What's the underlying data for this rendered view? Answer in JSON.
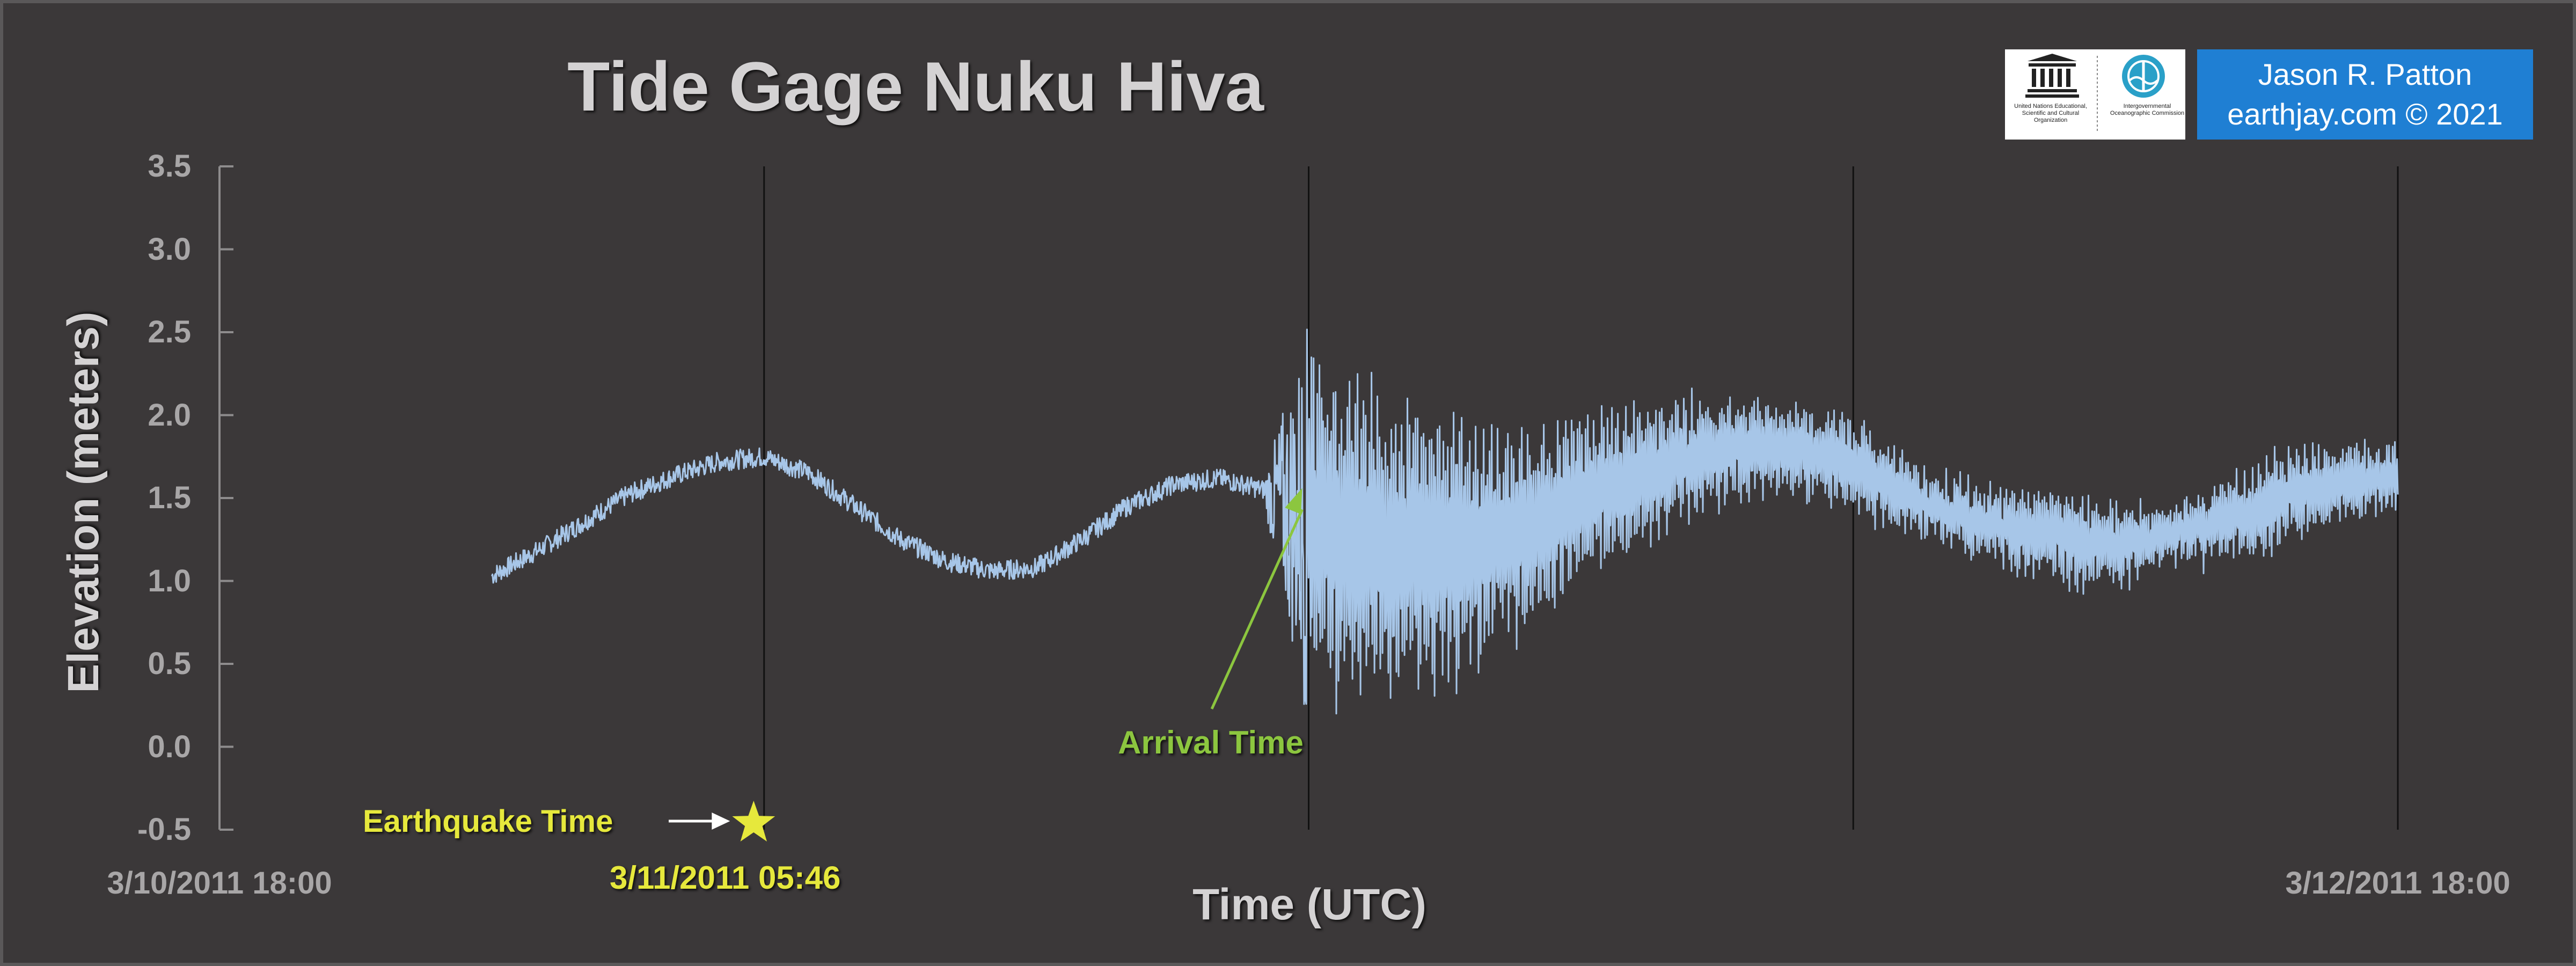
{
  "chart_data": {
    "type": "line",
    "title": "Tide Gage Nuku Hiva",
    "xlabel": "Time (UTC)",
    "ylabel": "Elevation (meters)",
    "ylim": [
      -0.5,
      3.5
    ],
    "yticks": [
      "3.5",
      "3.0",
      "2.5",
      "2.0",
      "1.5",
      "1.0",
      "0.5",
      "0.0",
      "-0.5"
    ],
    "xticks": [
      {
        "label": "3/10/2011 18:00",
        "hours": 0
      },
      {
        "label": "3/12/2011 18:00",
        "hours": 48
      }
    ],
    "xlim_hours": [
      0,
      48
    ],
    "gridlines_hours": [
      12,
      24,
      36,
      48
    ],
    "grid": "vertical",
    "series": [
      {
        "color": "#a7c6e8",
        "x_hours": [
          6,
          7,
          8,
          9,
          10,
          11,
          12,
          13,
          14,
          15,
          16,
          17,
          18,
          19,
          20,
          21,
          22,
          23,
          24,
          25,
          26,
          27,
          28,
          29,
          30,
          31,
          32,
          33,
          34,
          35,
          36,
          37,
          38,
          39,
          40,
          41,
          42,
          43,
          44,
          45,
          46,
          47,
          48
        ],
        "baseline_m": [
          1.03,
          1.18,
          1.35,
          1.52,
          1.63,
          1.72,
          1.75,
          1.65,
          1.45,
          1.25,
          1.12,
          1.06,
          1.08,
          1.25,
          1.45,
          1.58,
          1.62,
          1.55,
          1.35,
          1.25,
          1.2,
          1.18,
          1.25,
          1.35,
          1.48,
          1.6,
          1.72,
          1.78,
          1.82,
          1.78,
          1.7,
          1.55,
          1.42,
          1.35,
          1.3,
          1.25,
          1.22,
          1.28,
          1.35,
          1.45,
          1.55,
          1.6,
          1.62
        ],
        "envelope_m": [
          0.06,
          0.06,
          0.06,
          0.06,
          0.06,
          0.06,
          0.06,
          0.06,
          0.06,
          0.06,
          0.06,
          0.06,
          0.06,
          0.06,
          0.06,
          0.06,
          0.06,
          0.06,
          1.25,
          1.1,
          1.0,
          0.9,
          0.75,
          0.65,
          0.55,
          0.5,
          0.4,
          0.35,
          0.3,
          0.32,
          0.3,
          0.25,
          0.22,
          0.25,
          0.3,
          0.3,
          0.25,
          0.2,
          0.25,
          0.3,
          0.3,
          0.25,
          0.2
        ]
      }
    ],
    "annotations": {
      "earthquake_label": "Earthquake Time",
      "earthquake_time_label": "3/11/2011 05:46",
      "earthquake_hours": 11.77,
      "arrival_label": "Arrival Time",
      "arrival_hours": 24
    }
  },
  "logos": {
    "unesco_text": "United Nations Educational, Scientific and Cultural Organization",
    "ioc_text": "Intergovernmental Oceanographic Commission"
  },
  "credit": {
    "name": "Jason R. Patton",
    "site": "earthjay.com © 2021"
  },
  "colors": {
    "background": "#3b3839",
    "series": "#a7c6e8",
    "earthquake": "#e6e83c",
    "arrival": "#8cc63f",
    "credit_box": "#1f7fd3"
  }
}
